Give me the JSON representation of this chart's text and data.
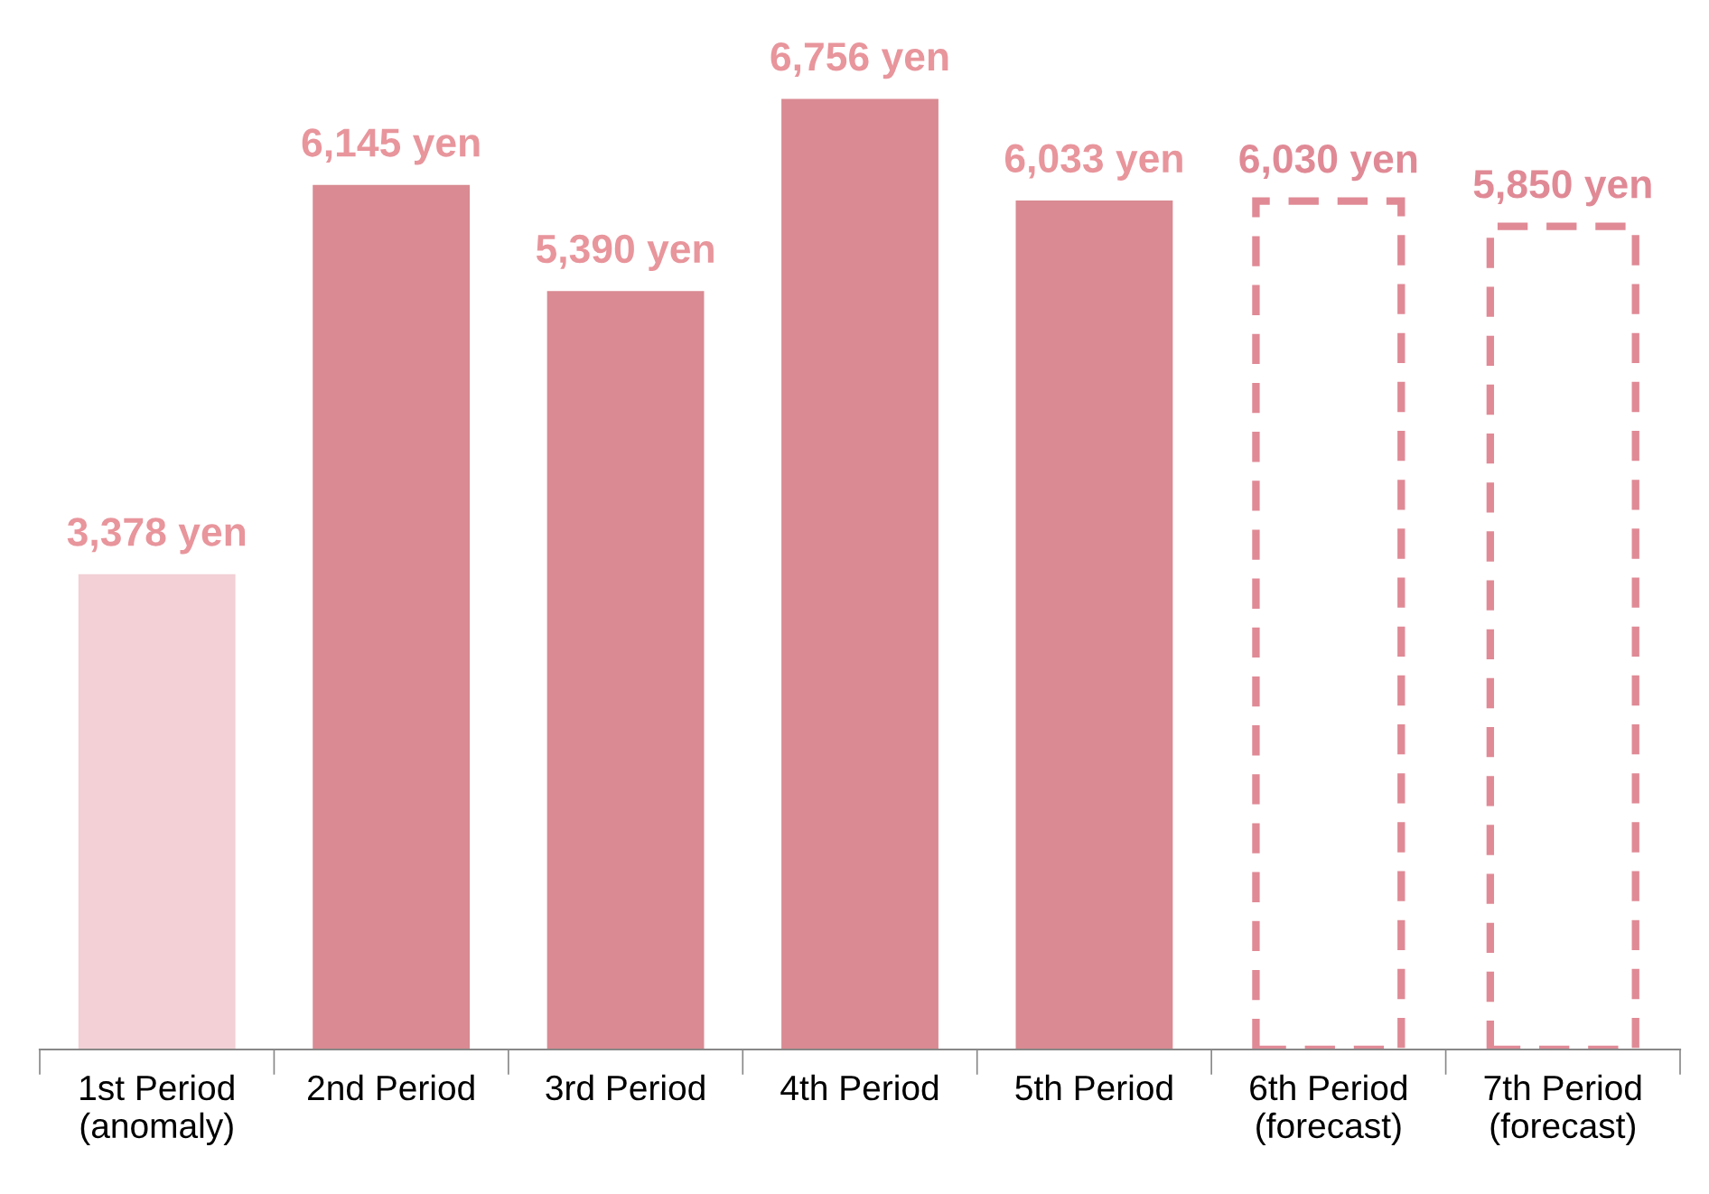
{
  "chart_data": {
    "type": "bar",
    "categories": [
      "1st Period\n(anomaly)",
      "2nd Period",
      "3rd Period",
      "4th Period",
      "5th Period",
      "6th Period\n(forecast)",
      "7th Period\n(forecast)"
    ],
    "series": [
      {
        "values": [
          3378,
          null,
          null,
          null,
          null,
          null,
          null
        ],
        "color": "#f2d0d5",
        "value_labels": [
          "3,378 yen",
          null,
          null,
          null,
          null,
          null,
          null
        ]
      },
      {
        "values": [
          null,
          6145,
          5390,
          6756,
          6033,
          null,
          null
        ],
        "color": "#d98a92",
        "value_labels": [
          null,
          "6,145 yen",
          "5,390 yen",
          "6,756 yen",
          "6,033 yen",
          null,
          null
        ]
      },
      {
        "values": [
          null,
          null,
          null,
          null,
          null,
          6030,
          5850
        ],
        "color": "#e08a96",
        "line_style": "dashed",
        "value_labels": [
          null,
          null,
          null,
          null,
          null,
          "6,030 yen",
          "5,850 yen"
        ]
      }
    ],
    "grid": false,
    "legend": false
  }
}
